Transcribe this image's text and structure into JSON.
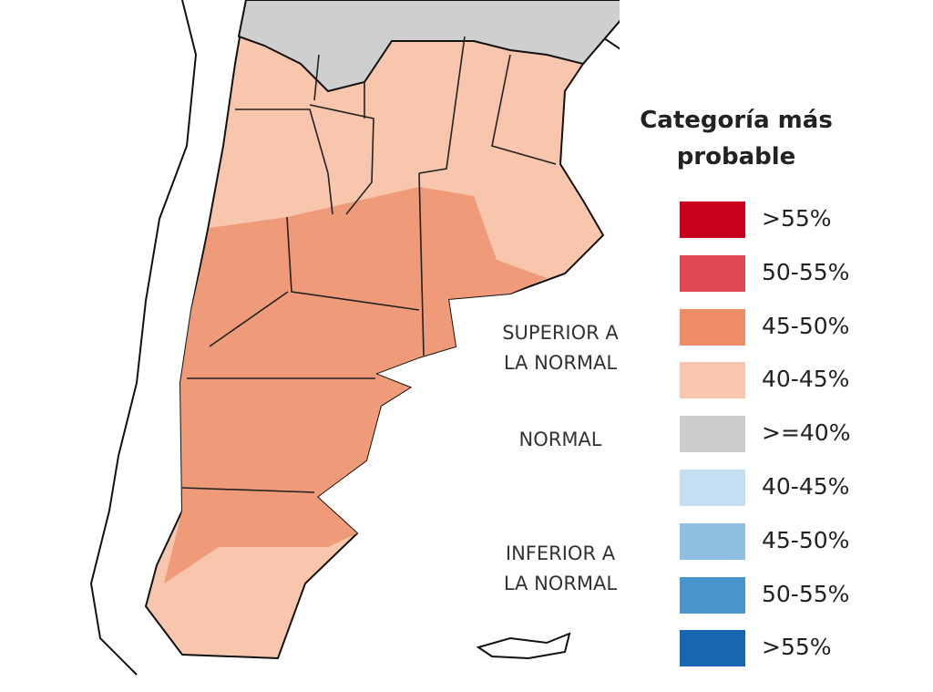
{
  "legend": {
    "title": [
      "Categoría más",
      "probable"
    ],
    "items": [
      {
        "label": ">55%",
        "color": "#c9001c"
      },
      {
        "label": "50-55%",
        "color": "#e04750"
      },
      {
        "label": "45-50%",
        "color": "#ef8c66"
      },
      {
        "label": "40-45%",
        "color": "#f7c6ad"
      },
      {
        "label": ">=40%",
        "color": "#cdcdcd"
      },
      {
        "label": "40-45%",
        "color": "#c5def1"
      },
      {
        "label": "45-50%",
        "color": "#8ec0e3"
      },
      {
        "label": "50-55%",
        "color": "#4a94cd"
      },
      {
        "label": ">55%",
        "color": "#1766b1"
      }
    ]
  },
  "groups": [
    {
      "lines": [
        "SUPERIOR A",
        "LA NORMAL"
      ]
    },
    {
      "lines": [
        "NORMAL"
      ]
    },
    {
      "lines": [
        "INFERIOR A",
        "LA NORMAL"
      ]
    }
  ]
}
